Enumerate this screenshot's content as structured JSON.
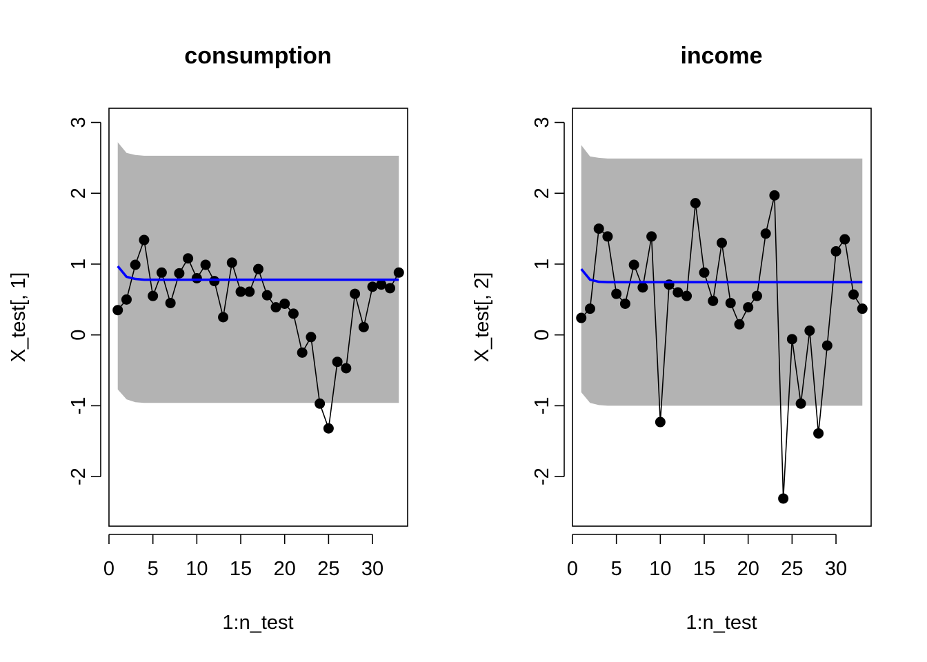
{
  "chart_data": [
    {
      "type": "line",
      "title": "consumption",
      "xlabel": "1:n_test",
      "ylabel": "X_test[, 1]",
      "xlim": [
        0,
        34
      ],
      "ylim": [
        -2.7,
        3.2
      ],
      "xticks": [
        "0",
        "5",
        "10",
        "15",
        "20",
        "25",
        "30"
      ],
      "yticks": [
        "-2",
        "-1",
        "0",
        "1",
        "2",
        "3"
      ],
      "grid": false,
      "colors": {
        "band": "#b3b3b3",
        "forecast": "#0000ff",
        "observed": "#000000"
      },
      "x": [
        1,
        2,
        3,
        4,
        5,
        6,
        7,
        8,
        9,
        10,
        11,
        12,
        13,
        14,
        15,
        16,
        17,
        18,
        19,
        20,
        21,
        22,
        23,
        24,
        25,
        26,
        27,
        28,
        29,
        30,
        31,
        32,
        33
      ],
      "series": [
        {
          "values": [
            0.35,
            0.5,
            0.99,
            1.34,
            0.55,
            0.88,
            0.45,
            0.87,
            1.08,
            0.8,
            0.99,
            0.76,
            0.25,
            1.02,
            0.61,
            0.61,
            0.93,
            0.56,
            0.39,
            0.44,
            0.3,
            -0.25,
            -0.03,
            -0.97,
            -1.32,
            -0.38,
            -0.47,
            0.58,
            0.11,
            0.68,
            0.71,
            0.66,
            0.88
          ]
        },
        {
          "values": [
            0.97,
            0.82,
            0.79,
            0.78,
            0.78,
            0.78,
            0.78,
            0.78,
            0.78,
            0.78,
            0.78,
            0.78,
            0.78,
            0.78,
            0.78,
            0.78,
            0.78,
            0.78,
            0.78,
            0.78,
            0.78,
            0.78,
            0.78,
            0.78,
            0.78,
            0.78,
            0.78,
            0.78,
            0.78,
            0.78,
            0.78,
            0.78,
            0.78
          ]
        }
      ],
      "band": {
        "upper": [
          2.72,
          2.57,
          2.54,
          2.53,
          2.53,
          2.53,
          2.53,
          2.53,
          2.53,
          2.53,
          2.53,
          2.53,
          2.53,
          2.53,
          2.53,
          2.53,
          2.53,
          2.53,
          2.53,
          2.53,
          2.53,
          2.53,
          2.53,
          2.53,
          2.53,
          2.53,
          2.53,
          2.53,
          2.53,
          2.53,
          2.53,
          2.53,
          2.53
        ],
        "lower": [
          -0.77,
          -0.91,
          -0.95,
          -0.96,
          -0.96,
          -0.96,
          -0.96,
          -0.96,
          -0.96,
          -0.96,
          -0.96,
          -0.96,
          -0.96,
          -0.96,
          -0.96,
          -0.96,
          -0.96,
          -0.96,
          -0.96,
          -0.96,
          -0.96,
          -0.96,
          -0.96,
          -0.96,
          -0.96,
          -0.96,
          -0.96,
          -0.96,
          -0.96,
          -0.96,
          -0.96,
          -0.96,
          -0.96
        ]
      }
    },
    {
      "type": "line",
      "title": "income",
      "xlabel": "1:n_test",
      "ylabel": "X_test[, 2]",
      "xlim": [
        0,
        34
      ],
      "ylim": [
        -2.7,
        3.2
      ],
      "xticks": [
        "0",
        "5",
        "10",
        "15",
        "20",
        "25",
        "30"
      ],
      "yticks": [
        "-2",
        "-1",
        "0",
        "1",
        "2",
        "3"
      ],
      "grid": false,
      "colors": {
        "band": "#b3b3b3",
        "forecast": "#0000ff",
        "observed": "#000000"
      },
      "x": [
        1,
        2,
        3,
        4,
        5,
        6,
        7,
        8,
        9,
        10,
        11,
        12,
        13,
        14,
        15,
        16,
        17,
        18,
        19,
        20,
        21,
        22,
        23,
        24,
        25,
        26,
        27,
        28,
        29,
        30,
        31,
        32,
        33
      ],
      "series": [
        {
          "values": [
            0.24,
            0.37,
            1.5,
            1.39,
            0.58,
            0.44,
            0.99,
            0.67,
            1.39,
            -1.23,
            0.71,
            0.6,
            0.55,
            1.86,
            0.88,
            0.48,
            1.3,
            0.45,
            0.15,
            0.39,
            0.55,
            1.43,
            1.97,
            -2.31,
            -0.06,
            -0.97,
            0.06,
            -1.39,
            -0.15,
            1.18,
            1.35,
            0.57,
            0.37
          ]
        },
        {
          "values": [
            0.93,
            0.78,
            0.75,
            0.745,
            0.745,
            0.745,
            0.745,
            0.745,
            0.745,
            0.745,
            0.745,
            0.745,
            0.745,
            0.745,
            0.745,
            0.745,
            0.745,
            0.745,
            0.745,
            0.745,
            0.745,
            0.745,
            0.745,
            0.745,
            0.745,
            0.745,
            0.745,
            0.745,
            0.745,
            0.745,
            0.745,
            0.745,
            0.745
          ]
        }
      ],
      "band": {
        "upper": [
          2.68,
          2.52,
          2.5,
          2.49,
          2.49,
          2.49,
          2.49,
          2.49,
          2.49,
          2.49,
          2.49,
          2.49,
          2.49,
          2.49,
          2.49,
          2.49,
          2.49,
          2.49,
          2.49,
          2.49,
          2.49,
          2.49,
          2.49,
          2.49,
          2.49,
          2.49,
          2.49,
          2.49,
          2.49,
          2.49,
          2.49,
          2.49,
          2.49
        ],
        "lower": [
          -0.81,
          -0.96,
          -0.99,
          -1.0,
          -1.0,
          -1.0,
          -1.0,
          -1.0,
          -1.0,
          -1.0,
          -1.0,
          -1.0,
          -1.0,
          -1.0,
          -1.0,
          -1.0,
          -1.0,
          -1.0,
          -1.0,
          -1.0,
          -1.0,
          -1.0,
          -1.0,
          -1.0,
          -1.0,
          -1.0,
          -1.0,
          -1.0,
          -1.0,
          -1.0,
          -1.0,
          -1.0,
          -1.0
        ]
      }
    }
  ]
}
